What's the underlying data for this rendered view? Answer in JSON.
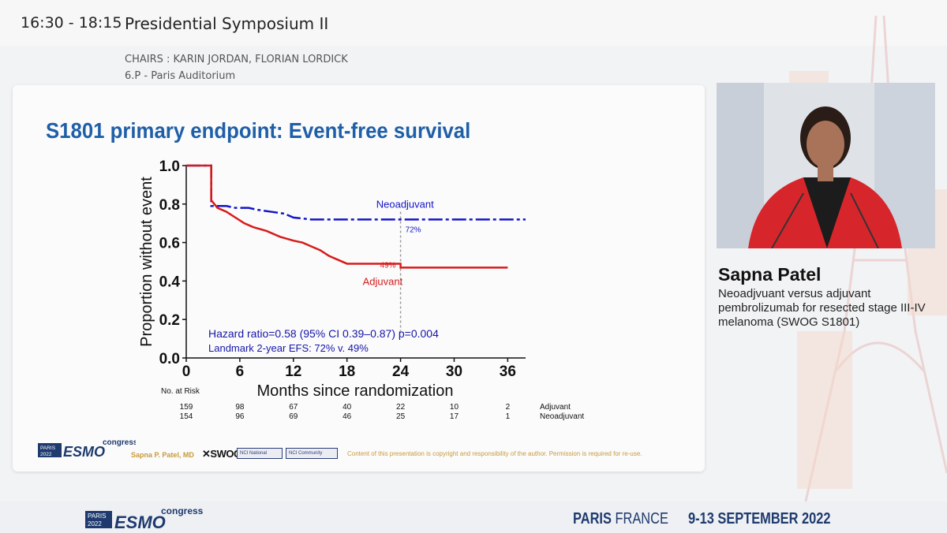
{
  "session": {
    "time": "16:30 - 18:15",
    "title": "Presidential Symposium II",
    "chairs": "CHAIRS : KARIN JORDAN, FLORIAN LORDICK",
    "room": "6.P - Paris Auditorium"
  },
  "slide": {
    "title": "S1801 primary endpoint: Event-free survival",
    "presenter_credit": "Sapna P. Patel, MD",
    "swog": "SWOG",
    "nci_badge_1": "NCI National Clinical Trials Network",
    "nci_badge_2": "NCI Community Oncology Research Program",
    "copyright": "Content of this presentation is copyright and responsibility of the author. Permission is required for re-use.",
    "logo": {
      "city": "PARIS",
      "year": "2022",
      "brand": "ESMO",
      "suffix": "congress"
    }
  },
  "chart_data": {
    "type": "line",
    "title": "",
    "xlabel": "Months since randomization",
    "ylabel": "Proportion without event",
    "xlim": [
      0,
      38
    ],
    "ylim": [
      0,
      1.0
    ],
    "xticks": [
      0,
      6,
      12,
      18,
      24,
      30,
      36
    ],
    "xtick_labels": [
      "0",
      "6",
      "12",
      "18",
      "24",
      "30",
      "36"
    ],
    "yticks": [
      0,
      0.2,
      0.4,
      0.6,
      0.8,
      1.0
    ],
    "ytick_labels": [
      "0.0",
      "0.2",
      "0.4",
      "0.6",
      "0.8",
      "1.0"
    ],
    "series": [
      {
        "name": "Neoadjuvant",
        "color": "#1515c8",
        "style": "dashed",
        "x": [
          0,
          2.8,
          2.8,
          4.5,
          5.5,
          7,
          8,
          9.5,
          11,
          12,
          14,
          16,
          18,
          20,
          22,
          24,
          26,
          30,
          36,
          39
        ],
        "y": [
          1.0,
          1.0,
          0.79,
          0.79,
          0.78,
          0.78,
          0.77,
          0.76,
          0.75,
          0.73,
          0.72,
          0.72,
          0.72,
          0.72,
          0.72,
          0.72,
          0.72,
          0.72,
          0.72,
          0.72
        ]
      },
      {
        "name": "Adjuvant",
        "color": "#d81a1a",
        "style": "solid",
        "x": [
          0,
          2.8,
          2.8,
          3.5,
          4.5,
          5.5,
          6.5,
          7.5,
          9,
          10.5,
          12,
          13,
          14,
          15,
          16,
          17,
          18,
          20,
          22,
          24,
          24,
          30,
          36
        ],
        "y": [
          1.0,
          1.0,
          0.82,
          0.78,
          0.76,
          0.73,
          0.7,
          0.68,
          0.66,
          0.63,
          0.61,
          0.6,
          0.58,
          0.56,
          0.53,
          0.51,
          0.49,
          0.49,
          0.49,
          0.49,
          0.47,
          0.47,
          0.47
        ]
      }
    ],
    "reference_line_x": 24,
    "landmark_labels": [
      {
        "text": "72%",
        "series": "Neoadjuvant",
        "x": 24,
        "y": 0.72
      },
      {
        "text": "49%",
        "series": "Adjuvant",
        "x": 24,
        "y": 0.49
      }
    ],
    "annotations": {
      "hazard_ratio": "Hazard ratio=0.58 (95% CI 0.39–0.87) p=0.004",
      "landmark": "Landmark 2-year EFS: 72% v. 49%"
    },
    "risk_table": {
      "label": "No. at Risk",
      "times": [
        0,
        6,
        12,
        18,
        24,
        30,
        36
      ],
      "rows": [
        {
          "name": "Adjuvant",
          "counts": [
            "159",
            "98",
            "67",
            "40",
            "22",
            "10",
            "2"
          ]
        },
        {
          "name": "Neoadjuvant",
          "counts": [
            "154",
            "96",
            "69",
            "46",
            "25",
            "17",
            "1"
          ]
        }
      ]
    },
    "grid": false,
    "legend": "inline labels"
  },
  "speaker": {
    "name": "Sapna Patel",
    "talk_title": "Neoadjvuant versus adjuvant pembrolizumab for resected stage III-IV melanoma (SWOG S1801)"
  },
  "footer": {
    "city_bold": "PARIS",
    "country": "FRANCE",
    "dates": "9-13 SEPTEMBER 2022",
    "logo": {
      "city": "PARIS",
      "year": "2022",
      "brand": "ESMO",
      "suffix": "congress"
    }
  },
  "colors": {
    "title_blue": "#1f5fa8",
    "neoadjuvant_blue": "#1515c8",
    "adjuvant_red": "#d81a1a",
    "credit_gold": "#c79a3a",
    "footer_navy": "#1e3a6e"
  }
}
